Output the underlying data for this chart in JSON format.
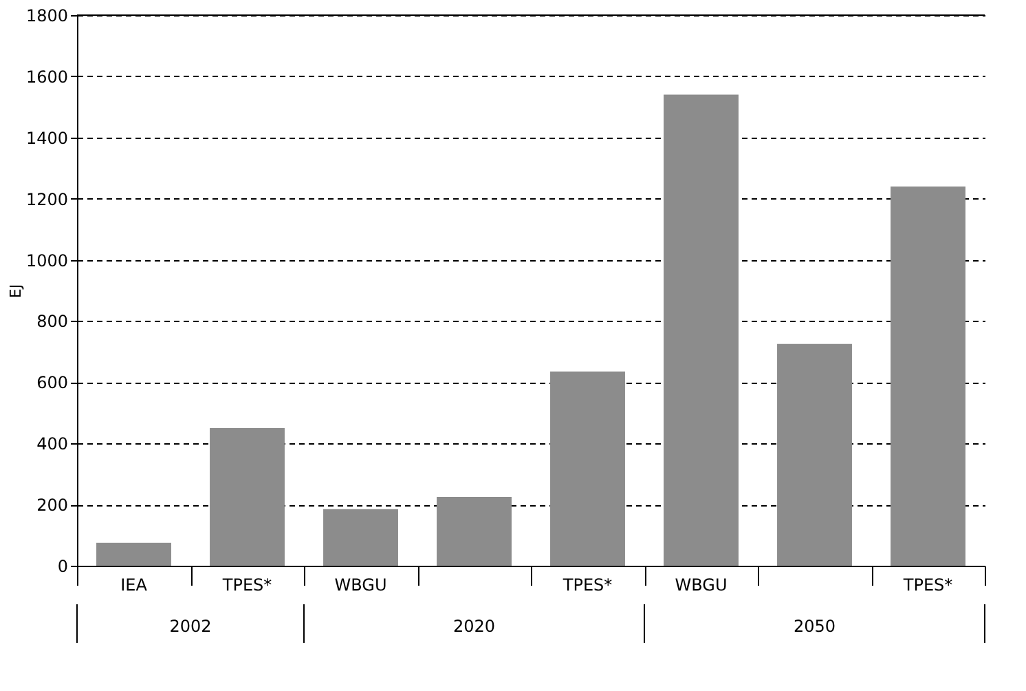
{
  "chart_data": {
    "type": "bar",
    "ylabel": "EJ",
    "categories": [
      "IEA",
      "TPES*",
      "WBGU",
      null,
      "TPES*",
      "WBGU",
      null,
      "TPES*"
    ],
    "values": [
      75,
      450,
      185,
      225,
      635,
      1540,
      725,
      1240
    ],
    "color": "#8c8c8c",
    "ylim": [
      0,
      1800
    ],
    "yticks": [
      0,
      200,
      400,
      600,
      800,
      1000,
      1200,
      1400,
      1600,
      1800
    ],
    "grid": "y",
    "annotations": [
      "2002",
      "2020",
      "2050"
    ]
  }
}
